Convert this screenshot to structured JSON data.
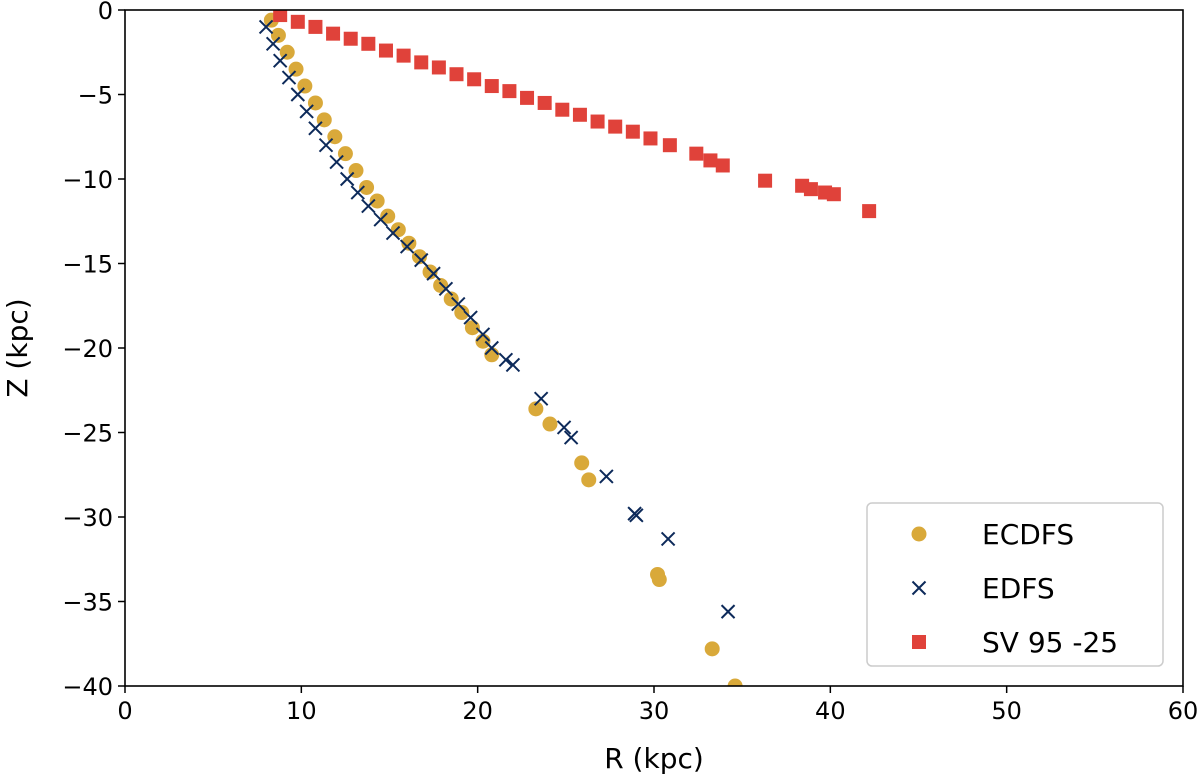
{
  "chart_data": {
    "type": "scatter",
    "xlabel": "R (kpc)",
    "ylabel": "Z (kpc)",
    "xlim": [
      0,
      60
    ],
    "ylim": [
      -40,
      0
    ],
    "xticks": [
      0,
      10,
      20,
      30,
      40,
      50,
      60
    ],
    "yticks": [
      0,
      -5,
      -10,
      -15,
      -20,
      -25,
      -30,
      -35,
      -40
    ],
    "grid": false,
    "legend_position": "bottom-right",
    "series": [
      {
        "name": "ECDFS",
        "marker": "circle",
        "color": "#d9a93a",
        "points": [
          [
            8.3,
            -0.6
          ],
          [
            8.7,
            -1.5
          ],
          [
            9.2,
            -2.5
          ],
          [
            9.7,
            -3.5
          ],
          [
            10.2,
            -4.5
          ],
          [
            10.8,
            -5.5
          ],
          [
            11.3,
            -6.5
          ],
          [
            11.9,
            -7.5
          ],
          [
            12.5,
            -8.5
          ],
          [
            13.1,
            -9.5
          ],
          [
            13.7,
            -10.5
          ],
          [
            14.3,
            -11.3
          ],
          [
            14.9,
            -12.2
          ],
          [
            15.5,
            -13.0
          ],
          [
            16.1,
            -13.8
          ],
          [
            16.7,
            -14.6
          ],
          [
            17.3,
            -15.5
          ],
          [
            17.9,
            -16.3
          ],
          [
            18.5,
            -17.1
          ],
          [
            19.1,
            -17.9
          ],
          [
            19.7,
            -18.8
          ],
          [
            20.3,
            -19.6
          ],
          [
            20.8,
            -20.4
          ],
          [
            23.3,
            -23.6
          ],
          [
            24.1,
            -24.5
          ],
          [
            25.9,
            -26.8
          ],
          [
            26.3,
            -27.8
          ],
          [
            30.2,
            -33.4
          ],
          [
            30.3,
            -33.7
          ],
          [
            33.3,
            -37.8
          ],
          [
            34.6,
            -40.0
          ]
        ]
      },
      {
        "name": "EDFS",
        "marker": "x",
        "color": "#0d2a5a",
        "points": [
          [
            8.0,
            -1.0
          ],
          [
            8.4,
            -2.0
          ],
          [
            8.8,
            -3.0
          ],
          [
            9.3,
            -4.0
          ],
          [
            9.8,
            -5.0
          ],
          [
            10.3,
            -6.0
          ],
          [
            10.8,
            -7.0
          ],
          [
            11.4,
            -8.0
          ],
          [
            12.0,
            -9.0
          ],
          [
            12.6,
            -10.0
          ],
          [
            13.2,
            -10.8
          ],
          [
            13.8,
            -11.6
          ],
          [
            14.5,
            -12.4
          ],
          [
            15.2,
            -13.2
          ],
          [
            16.0,
            -14.0
          ],
          [
            16.8,
            -14.8
          ],
          [
            17.5,
            -15.6
          ],
          [
            18.2,
            -16.5
          ],
          [
            18.9,
            -17.4
          ],
          [
            19.6,
            -18.2
          ],
          [
            20.3,
            -19.2
          ],
          [
            20.8,
            -20.0
          ],
          [
            21.6,
            -20.7
          ],
          [
            22.0,
            -21.0
          ],
          [
            23.6,
            -23.0
          ],
          [
            24.9,
            -24.7
          ],
          [
            25.3,
            -25.3
          ],
          [
            27.3,
            -27.6
          ],
          [
            28.9,
            -29.8
          ],
          [
            29.0,
            -29.9
          ],
          [
            30.8,
            -31.3
          ],
          [
            34.2,
            -35.6
          ]
        ]
      },
      {
        "name": "SV 95 -25",
        "marker": "square",
        "color": "#e0423a",
        "points": [
          [
            8.8,
            -0.3
          ],
          [
            9.8,
            -0.7
          ],
          [
            10.8,
            -1.0
          ],
          [
            11.8,
            -1.4
          ],
          [
            12.8,
            -1.7
          ],
          [
            13.8,
            -2.0
          ],
          [
            14.8,
            -2.4
          ],
          [
            15.8,
            -2.7
          ],
          [
            16.8,
            -3.1
          ],
          [
            17.8,
            -3.4
          ],
          [
            18.8,
            -3.8
          ],
          [
            19.8,
            -4.1
          ],
          [
            20.8,
            -4.5
          ],
          [
            21.8,
            -4.8
          ],
          [
            22.8,
            -5.2
          ],
          [
            23.8,
            -5.5
          ],
          [
            24.8,
            -5.9
          ],
          [
            25.8,
            -6.2
          ],
          [
            26.8,
            -6.6
          ],
          [
            27.8,
            -6.9
          ],
          [
            28.8,
            -7.2
          ],
          [
            29.8,
            -7.6
          ],
          [
            30.9,
            -8.0
          ],
          [
            32.4,
            -8.5
          ],
          [
            33.2,
            -8.9
          ],
          [
            33.9,
            -9.2
          ],
          [
            36.3,
            -10.1
          ],
          [
            38.4,
            -10.4
          ],
          [
            38.9,
            -10.6
          ],
          [
            39.7,
            -10.8
          ],
          [
            40.2,
            -10.9
          ],
          [
            42.2,
            -11.9
          ]
        ]
      }
    ]
  }
}
